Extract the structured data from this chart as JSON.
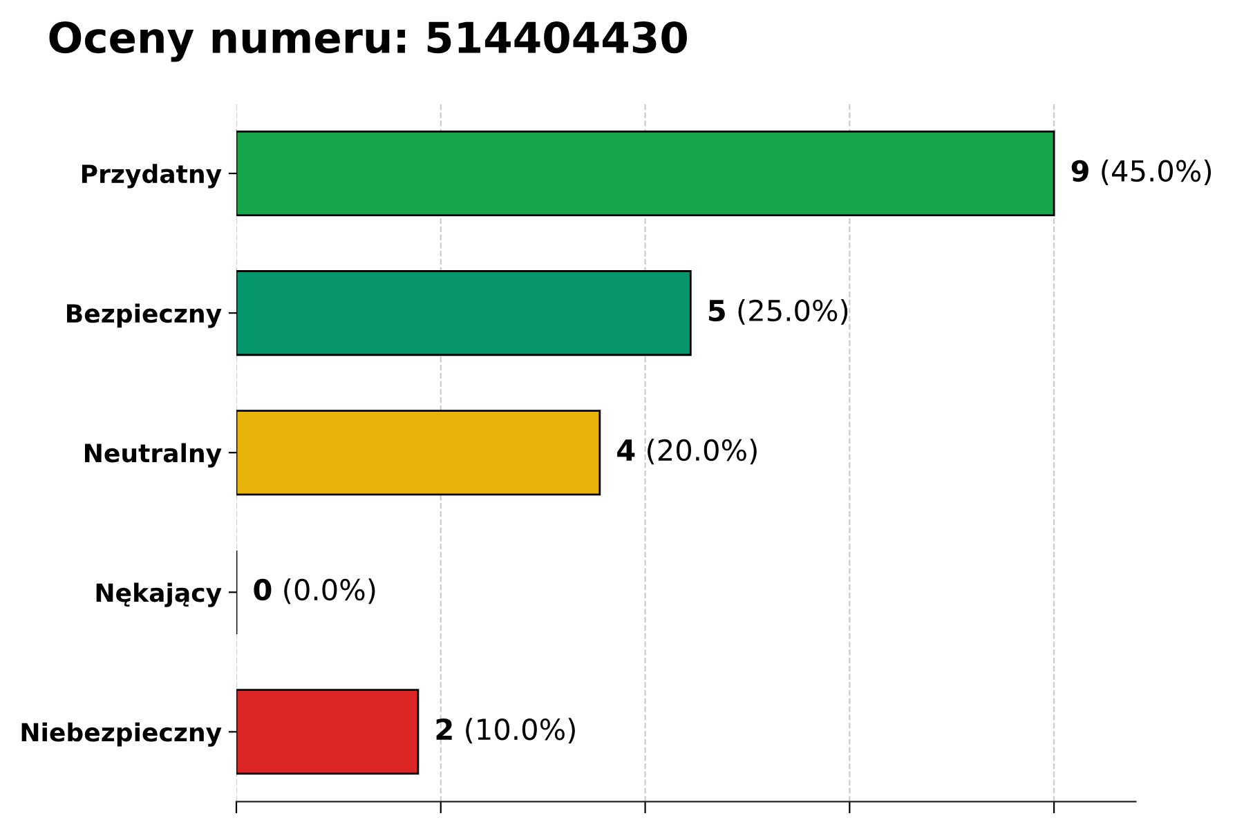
{
  "chart_data": {
    "type": "bar",
    "orientation": "horizontal",
    "title": "Oceny numeru: 514404430",
    "categories": [
      "Przydatny",
      "Bezpieczny",
      "Neutralny",
      "Nękający",
      "Niebezpieczny"
    ],
    "values": [
      9,
      5,
      4,
      0,
      2
    ],
    "colors": [
      "#18a64a",
      "#05966c",
      "#e9b40a",
      "#000000",
      "#dc2626"
    ],
    "value_labels": [
      "9 (45.0%)",
      "5 (25.0%)",
      "4 (20.0%)",
      "0 (0.0%)",
      "2 (10.0%)"
    ],
    "xlim": [
      0,
      9.9
    ],
    "xticks": [
      {
        "value": 0,
        "label": null
      },
      {
        "value": 2.25,
        "label": null
      },
      {
        "value": 4.5,
        "label": null
      },
      {
        "value": 6.75,
        "label": null
      },
      {
        "value": 9,
        "label": null
      }
    ],
    "tick_labels": "y",
    "grid": "x",
    "legend": false
  }
}
